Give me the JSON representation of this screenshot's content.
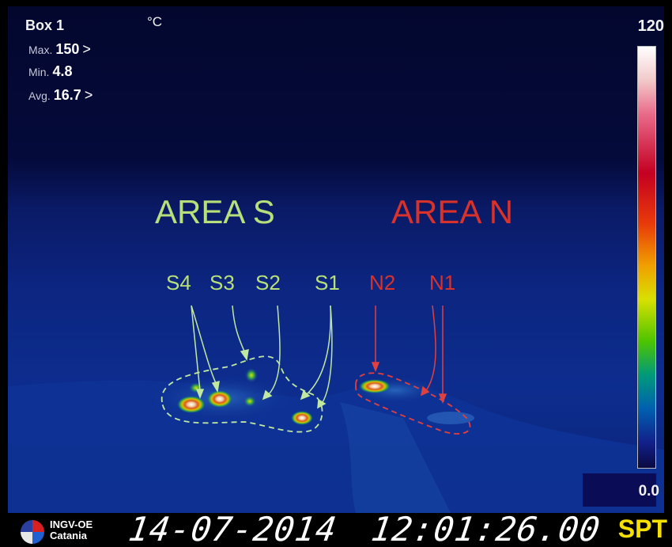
{
  "hud": {
    "box_label": "Box 1",
    "unit": "°C",
    "max_label": "Max.",
    "max_value": "150",
    "max_marker": ">",
    "min_label": "Min.",
    "min_value": "4.8",
    "avg_label": "Avg.",
    "avg_value": "16.7",
    "avg_marker": ">"
  },
  "scale": {
    "max": "120",
    "min": "0.0"
  },
  "annotations": {
    "area_s": "AREA S",
    "area_n": "AREA N",
    "s4": "S4",
    "s3": "S3",
    "s2": "S2",
    "s1": "S1",
    "n2": "N2",
    "n1": "N1",
    "color_s": "#b8e07a",
    "color_n": "#d8322a"
  },
  "footer": {
    "logo_line1": "INGV-OE",
    "logo_line2": "Catania",
    "date": "14-07-2014",
    "time": "12:01:26.00",
    "camera": "SPT"
  }
}
